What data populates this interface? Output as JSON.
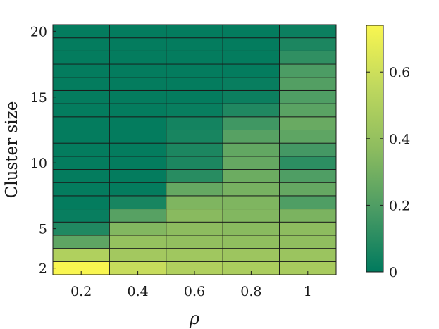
{
  "chart_data": {
    "type": "heatmap",
    "xlabel": "ρ",
    "ylabel": "Cluster size",
    "x": [
      0.2,
      0.4,
      0.6,
      0.8,
      1
    ],
    "x_tick_labels": [
      "0.2",
      "0.4",
      "0.6",
      "0.8",
      "1"
    ],
    "y": [
      2,
      3,
      4,
      5,
      6,
      7,
      8,
      9,
      10,
      11,
      12,
      13,
      14,
      15,
      16,
      17,
      18,
      19,
      20
    ],
    "y_tick_labels": [
      "2",
      "5",
      "10",
      "15",
      "20"
    ],
    "y_tick_values": [
      2,
      5,
      10,
      15,
      20
    ],
    "values": [
      [
        0.74,
        0.58,
        0.5,
        0.48,
        0.47
      ],
      [
        0.5,
        0.45,
        0.44,
        0.43,
        0.42
      ],
      [
        0.24,
        0.4,
        0.39,
        0.38,
        0.38
      ],
      [
        0.08,
        0.34,
        0.37,
        0.36,
        0.37
      ],
      [
        0.02,
        0.22,
        0.36,
        0.34,
        0.32
      ],
      [
        0.01,
        0.06,
        0.33,
        0.33,
        0.2
      ],
      [
        0.01,
        0.01,
        0.26,
        0.31,
        0.26
      ],
      [
        0.01,
        0.01,
        0.1,
        0.28,
        0.2
      ],
      [
        0.01,
        0.01,
        0.07,
        0.26,
        0.11
      ],
      [
        0.01,
        0.01,
        0.07,
        0.25,
        0.17
      ],
      [
        0.01,
        0.01,
        0.06,
        0.22,
        0.24
      ],
      [
        0.01,
        0.01,
        0.05,
        0.16,
        0.27
      ],
      [
        0.01,
        0.01,
        0.02,
        0.08,
        0.23
      ],
      [
        0.01,
        0.01,
        0.01,
        0.03,
        0.2
      ],
      [
        0.01,
        0.01,
        0.01,
        0.02,
        0.21
      ],
      [
        0.01,
        0.01,
        0.01,
        0.01,
        0.19
      ],
      [
        0.01,
        0.01,
        0.01,
        0.01,
        0.12
      ],
      [
        0.01,
        0.01,
        0.01,
        0.01,
        0.07
      ],
      [
        0.01,
        0.01,
        0.01,
        0.01,
        0.03
      ]
    ],
    "colorbar": {
      "min": 0,
      "max": 0.74,
      "tick_values": [
        0,
        0.2,
        0.4,
        0.6
      ],
      "tick_labels": [
        "0",
        "0.2",
        "0.4",
        "0.6"
      ]
    },
    "colormap": [
      "#007a5e",
      "#4a9b64",
      "#8dbc5f",
      "#bfd85e",
      "#f9f650"
    ],
    "grid": true,
    "cell_border_color": "#1a1a1a"
  }
}
